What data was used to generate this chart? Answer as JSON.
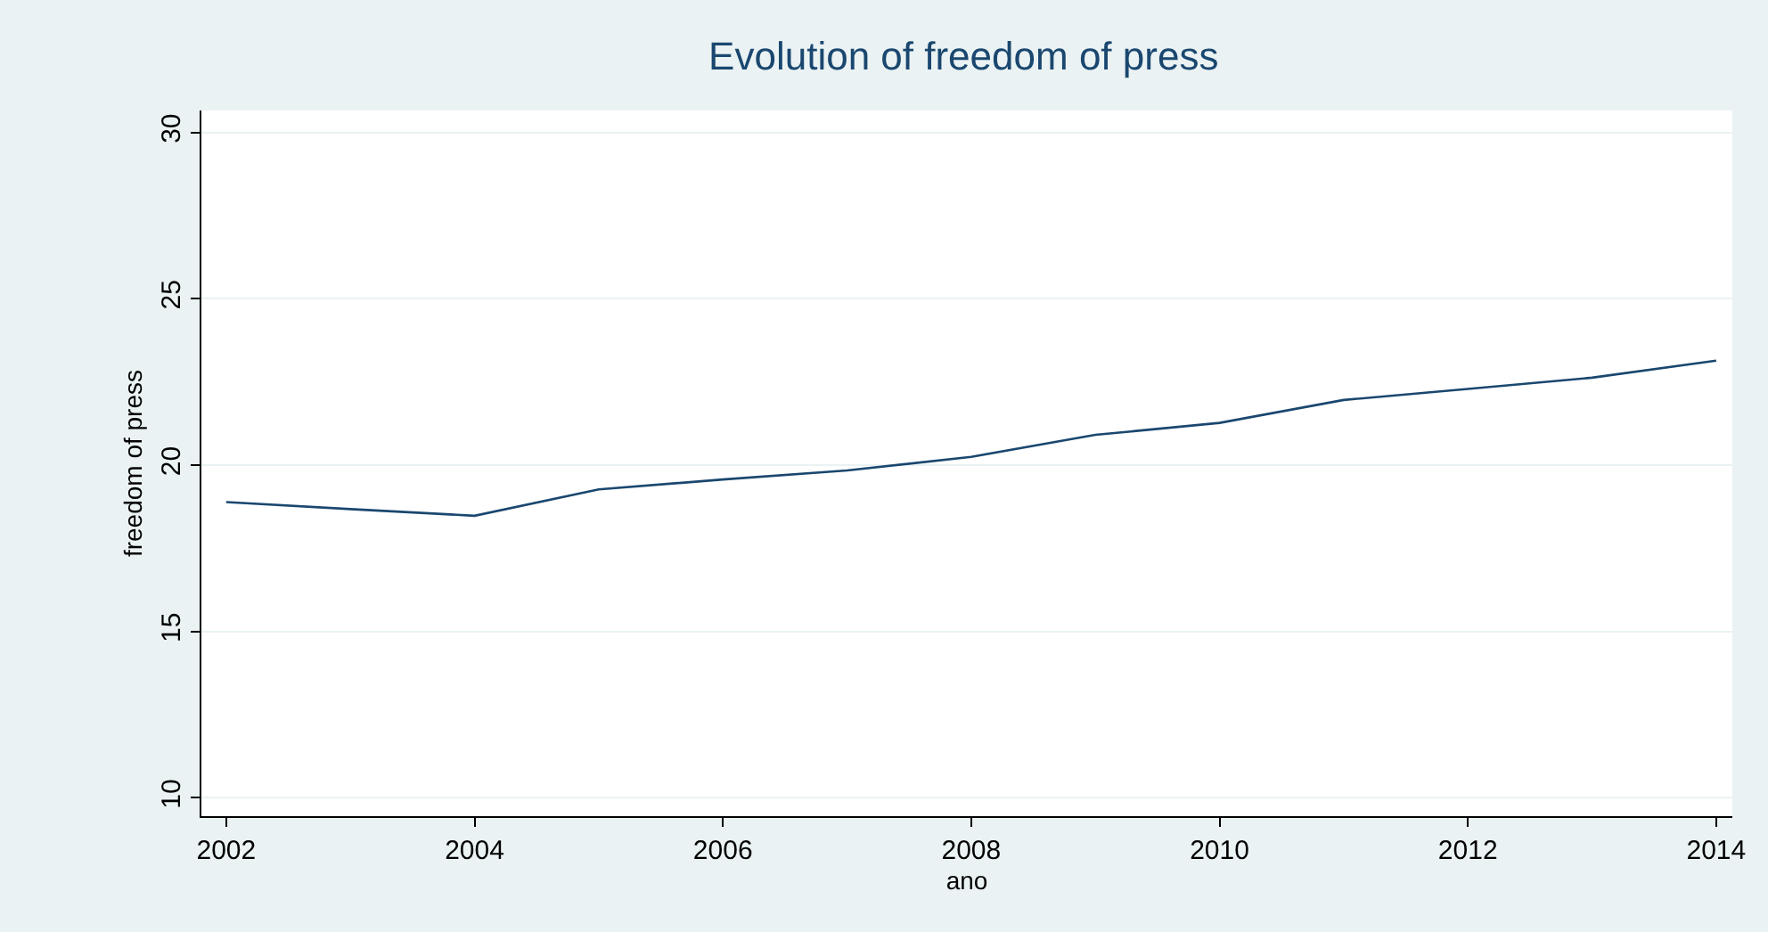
{
  "chart_data": {
    "type": "line",
    "title": "Evolution of freedom of press",
    "xlabel": "ano",
    "ylabel": "freedom of press",
    "x": [
      2002,
      2003,
      2004,
      2005,
      2006,
      2007,
      2008,
      2009,
      2010,
      2011,
      2012,
      2013,
      2014
    ],
    "series": [
      {
        "color": "#1a476f",
        "values": [
          18.89,
          18.68,
          18.48,
          19.27,
          19.57,
          19.84,
          20.25,
          20.91,
          21.27,
          21.96,
          22.29,
          22.63,
          23.14
        ]
      }
    ],
    "xlim": [
      2001.8,
      2014.13
    ],
    "xticks": [
      2002,
      2004,
      2006,
      2008,
      2010,
      2012,
      2014
    ],
    "ylim": [
      9.45,
      30.66
    ],
    "yticks": [
      10,
      15,
      20,
      25,
      30
    ],
    "grid": "y",
    "marker": "none",
    "line_style": "solid"
  }
}
